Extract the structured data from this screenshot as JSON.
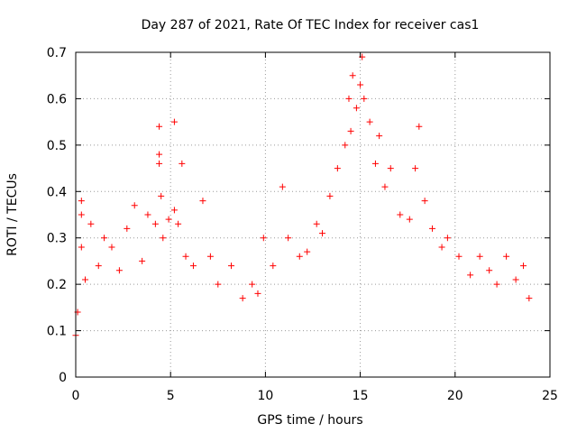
{
  "chart_data": {
    "type": "scatter",
    "title": "Day 287 of 2021, Rate Of TEC Index for receiver cas1",
    "xlabel": "GPS time / hours",
    "ylabel": "ROTI / TECUs",
    "xlim": [
      0,
      24
    ],
    "ylim": [
      0,
      0.7
    ],
    "x_ticks": [
      "0",
      "5",
      "10",
      "15",
      "20",
      "25"
    ],
    "y_ticks": [
      "0",
      "0.1",
      "0.2",
      "0.3",
      "0.4",
      "0.5",
      "0.6",
      "0.7"
    ],
    "grid": true,
    "marker": "+",
    "color": "#ff0000",
    "series": [
      {
        "points": [
          [
            0.0,
            0.09
          ],
          [
            0.1,
            0.14
          ],
          [
            0.3,
            0.38
          ],
          [
            0.3,
            0.35
          ],
          [
            0.3,
            0.28
          ],
          [
            0.5,
            0.21
          ],
          [
            0.8,
            0.33
          ],
          [
            1.2,
            0.24
          ],
          [
            1.5,
            0.3
          ],
          [
            1.9,
            0.28
          ],
          [
            2.3,
            0.23
          ],
          [
            2.7,
            0.32
          ],
          [
            3.1,
            0.37
          ],
          [
            3.5,
            0.25
          ],
          [
            3.8,
            0.35
          ],
          [
            4.2,
            0.33
          ],
          [
            4.4,
            0.54
          ],
          [
            4.4,
            0.48
          ],
          [
            4.4,
            0.46
          ],
          [
            4.5,
            0.39
          ],
          [
            4.6,
            0.3
          ],
          [
            4.9,
            0.34
          ],
          [
            5.2,
            0.55
          ],
          [
            5.2,
            0.36
          ],
          [
            5.4,
            0.33
          ],
          [
            5.6,
            0.46
          ],
          [
            5.8,
            0.26
          ],
          [
            6.2,
            0.24
          ],
          [
            6.7,
            0.38
          ],
          [
            7.1,
            0.26
          ],
          [
            7.5,
            0.2
          ],
          [
            8.2,
            0.24
          ],
          [
            8.8,
            0.17
          ],
          [
            9.3,
            0.2
          ],
          [
            9.6,
            0.18
          ],
          [
            9.9,
            0.3
          ],
          [
            10.4,
            0.24
          ],
          [
            10.9,
            0.41
          ],
          [
            11.2,
            0.3
          ],
          [
            11.8,
            0.26
          ],
          [
            12.2,
            0.27
          ],
          [
            12.7,
            0.33
          ],
          [
            13.0,
            0.31
          ],
          [
            13.4,
            0.39
          ],
          [
            13.8,
            0.45
          ],
          [
            14.2,
            0.5
          ],
          [
            14.4,
            0.6
          ],
          [
            14.5,
            0.53
          ],
          [
            14.6,
            0.65
          ],
          [
            14.8,
            0.58
          ],
          [
            15.0,
            0.63
          ],
          [
            15.1,
            0.69
          ],
          [
            15.2,
            0.6
          ],
          [
            15.5,
            0.55
          ],
          [
            15.8,
            0.46
          ],
          [
            16.0,
            0.52
          ],
          [
            16.3,
            0.41
          ],
          [
            16.6,
            0.45
          ],
          [
            17.1,
            0.35
          ],
          [
            17.6,
            0.34
          ],
          [
            17.9,
            0.45
          ],
          [
            18.1,
            0.54
          ],
          [
            18.4,
            0.38
          ],
          [
            18.8,
            0.32
          ],
          [
            19.3,
            0.28
          ],
          [
            19.6,
            0.3
          ],
          [
            20.2,
            0.26
          ],
          [
            20.8,
            0.22
          ],
          [
            21.3,
            0.26
          ],
          [
            21.8,
            0.23
          ],
          [
            22.2,
            0.2
          ],
          [
            22.7,
            0.26
          ],
          [
            23.2,
            0.21
          ],
          [
            23.6,
            0.24
          ],
          [
            23.9,
            0.17
          ]
        ]
      }
    ]
  }
}
